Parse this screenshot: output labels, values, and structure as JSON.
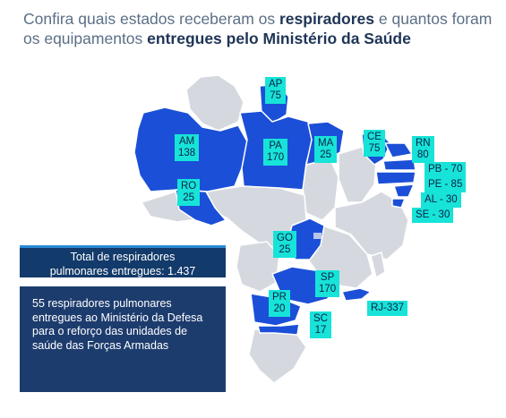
{
  "title": {
    "part1": "Confira quais estados receberam os ",
    "bold1": "respiradores",
    "part2": " e quantos foram os equipamentos ",
    "bold2": "entregues pelo Ministério da Saúde"
  },
  "colors": {
    "received": "#1b4fd8",
    "not_received": "#d5d9df",
    "label_bg": "#17e3d8",
    "label_text": "#0c2146",
    "panel": "#1d3c6e"
  },
  "states": [
    {
      "uf": "AP",
      "value": "75"
    },
    {
      "uf": "AM",
      "value": "138"
    },
    {
      "uf": "PA",
      "value": "170"
    },
    {
      "uf": "MA",
      "value": "25"
    },
    {
      "uf": "CE",
      "value": "75"
    },
    {
      "uf": "RN",
      "value": "80"
    },
    {
      "uf": "RO",
      "value": "25"
    },
    {
      "uf": "GO",
      "value": "25"
    },
    {
      "uf": "SP",
      "value": "170"
    },
    {
      "uf": "PR",
      "value": "20"
    },
    {
      "uf": "SC",
      "value": "17"
    }
  ],
  "inline_labels": [
    {
      "uf": "PB",
      "text": "PB - 70"
    },
    {
      "uf": "PE",
      "text": "PE - 85"
    },
    {
      "uf": "AL",
      "text": "AL - 30"
    },
    {
      "uf": "SE",
      "text": "SE - 30"
    },
    {
      "uf": "RJ",
      "text": "RJ-337"
    }
  ],
  "total": {
    "line1": "Total de respiradores",
    "line2": "pulmonares entregues: 1.437"
  },
  "info": "55 respiradores pulmonares entregues ao Ministério da Defesa para o reforço das unidades de saúde das Forças Armadas"
}
